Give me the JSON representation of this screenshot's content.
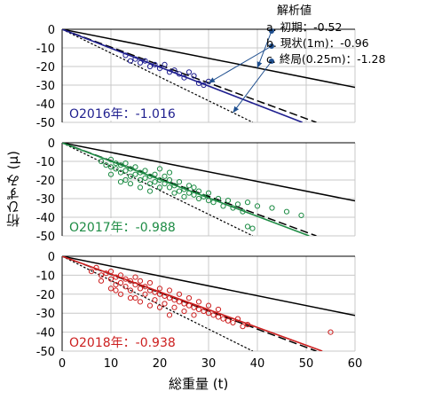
{
  "ylabel": "桁ひずみ (μ)",
  "xlabel": "総重量 (t)",
  "legend": {
    "title": "解析値",
    "items": [
      "a. 初期：-0.52",
      "b. 現状(1m)：-0.96",
      "c. 終局(0.25m)：-1.28"
    ]
  },
  "chart_data": [
    {
      "type": "scatter",
      "year_label": "O2016年：-1.016",
      "color": "#1f1f8f",
      "xlim": [
        0,
        60
      ],
      "ylim": [
        -50,
        0
      ],
      "yticks": [
        "0",
        "-10",
        "-20",
        "-30",
        "-40",
        "-50"
      ],
      "fit_slope": -1.016,
      "reference_slopes": [
        -0.52,
        -0.96,
        -1.28
      ],
      "points": [
        [
          13,
          -14
        ],
        [
          14,
          -17
        ],
        [
          15,
          -16
        ],
        [
          16,
          -18
        ],
        [
          17,
          -17
        ],
        [
          18,
          -20
        ],
        [
          19,
          -19
        ],
        [
          20,
          -21
        ],
        [
          21,
          -19
        ],
        [
          22,
          -23
        ],
        [
          23,
          -22
        ],
        [
          24,
          -24
        ],
        [
          25,
          -26
        ],
        [
          26,
          -23
        ],
        [
          27,
          -25
        ],
        [
          28,
          -29
        ],
        [
          29,
          -30
        ],
        [
          30,
          -28
        ]
      ]
    },
    {
      "type": "scatter",
      "year_label": "O2017年：-0.988",
      "color": "#1e8c45",
      "xlim": [
        0,
        60
      ],
      "ylim": [
        -50,
        0
      ],
      "yticks": [
        "0",
        "-10",
        "-20",
        "-30",
        "-40",
        "-50"
      ],
      "fit_slope": -0.988,
      "reference_slopes": [
        -0.52,
        -0.96,
        -1.28
      ],
      "points": [
        [
          8,
          -10
        ],
        [
          9,
          -12
        ],
        [
          10,
          -13
        ],
        [
          10,
          -9
        ],
        [
          11,
          -14
        ],
        [
          11,
          -11
        ],
        [
          12,
          -12
        ],
        [
          12,
          -16
        ],
        [
          13,
          -15
        ],
        [
          13,
          -11
        ],
        [
          14,
          -14
        ],
        [
          14,
          -18
        ],
        [
          15,
          -17
        ],
        [
          15,
          -13
        ],
        [
          16,
          -16
        ],
        [
          16,
          -20
        ],
        [
          17,
          -19
        ],
        [
          17,
          -15
        ],
        [
          18,
          -18
        ],
        [
          18,
          -22
        ],
        [
          19,
          -21
        ],
        [
          19,
          -17
        ],
        [
          20,
          -20
        ],
        [
          20,
          -24
        ],
        [
          21,
          -22
        ],
        [
          21,
          -18
        ],
        [
          22,
          -24
        ],
        [
          22,
          -20
        ],
        [
          23,
          -23
        ],
        [
          23,
          -27
        ],
        [
          24,
          -26
        ],
        [
          24,
          -21
        ],
        [
          25,
          -25
        ],
        [
          25,
          -29
        ],
        [
          26,
          -27
        ],
        [
          26,
          -23
        ],
        [
          27,
          -28
        ],
        [
          27,
          -24
        ],
        [
          28,
          -30
        ],
        [
          28,
          -26
        ],
        [
          29,
          -29
        ],
        [
          30,
          -31
        ],
        [
          30,
          -27
        ],
        [
          31,
          -32
        ],
        [
          32,
          -30
        ],
        [
          33,
          -34
        ],
        [
          34,
          -31
        ],
        [
          35,
          -35
        ],
        [
          36,
          -33
        ],
        [
          37,
          -37
        ],
        [
          38,
          -45
        ],
        [
          39,
          -46
        ],
        [
          12,
          -21
        ],
        [
          14,
          -22
        ],
        [
          16,
          -24
        ],
        [
          18,
          -26
        ],
        [
          20,
          -14
        ],
        [
          22,
          -16
        ],
        [
          10,
          -17
        ],
        [
          13,
          -20
        ],
        [
          38,
          -32
        ],
        [
          40,
          -34
        ],
        [
          43,
          -35
        ],
        [
          46,
          -37
        ],
        [
          49,
          -39
        ]
      ]
    },
    {
      "type": "scatter",
      "year_label": "O2018年：-0.938",
      "color": "#cc1f1f",
      "xlim": [
        0,
        60
      ],
      "ylim": [
        -50,
        0
      ],
      "yticks": [
        "0",
        "-10",
        "-20",
        "-30",
        "-40",
        "-50"
      ],
      "xticks": [
        "0",
        "10",
        "20",
        "30",
        "40",
        "50",
        "60"
      ],
      "fit_slope": -0.938,
      "reference_slopes": [
        -0.52,
        -0.96,
        -1.28
      ],
      "points": [
        [
          6,
          -8
        ],
        [
          7,
          -6
        ],
        [
          8,
          -10
        ],
        [
          9,
          -9
        ],
        [
          10,
          -12
        ],
        [
          10,
          -8
        ],
        [
          11,
          -11
        ],
        [
          11,
          -15
        ],
        [
          12,
          -10
        ],
        [
          12,
          -14
        ],
        [
          13,
          -12
        ],
        [
          13,
          -16
        ],
        [
          14,
          -13
        ],
        [
          14,
          -18
        ],
        [
          15,
          -15
        ],
        [
          15,
          -11
        ],
        [
          16,
          -17
        ],
        [
          16,
          -13
        ],
        [
          17,
          -16
        ],
        [
          17,
          -20
        ],
        [
          18,
          -18
        ],
        [
          18,
          -14
        ],
        [
          19,
          -19
        ],
        [
          19,
          -23
        ],
        [
          20,
          -20
        ],
        [
          20,
          -17
        ],
        [
          21,
          -21
        ],
        [
          21,
          -25
        ],
        [
          22,
          -22
        ],
        [
          22,
          -18
        ],
        [
          23,
          -23
        ],
        [
          23,
          -27
        ],
        [
          24,
          -24
        ],
        [
          24,
          -20
        ],
        [
          25,
          -25
        ],
        [
          25,
          -29
        ],
        [
          26,
          -26
        ],
        [
          26,
          -22
        ],
        [
          27,
          -27
        ],
        [
          27,
          -31
        ],
        [
          28,
          -28
        ],
        [
          28,
          -24
        ],
        [
          29,
          -29
        ],
        [
          30,
          -30
        ],
        [
          30,
          -26
        ],
        [
          31,
          -31
        ],
        [
          32,
          -32
        ],
        [
          32,
          -28
        ],
        [
          33,
          -33
        ],
        [
          34,
          -34
        ],
        [
          35,
          -35
        ],
        [
          36,
          -33
        ],
        [
          37,
          -37
        ],
        [
          12,
          -20
        ],
        [
          14,
          -22
        ],
        [
          16,
          -24
        ],
        [
          18,
          -26
        ],
        [
          10,
          -17
        ],
        [
          15,
          -22
        ],
        [
          20,
          -27
        ],
        [
          22,
          -31
        ],
        [
          8,
          -13
        ],
        [
          11,
          -18
        ],
        [
          55,
          -40
        ],
        [
          38,
          -36
        ]
      ]
    }
  ]
}
